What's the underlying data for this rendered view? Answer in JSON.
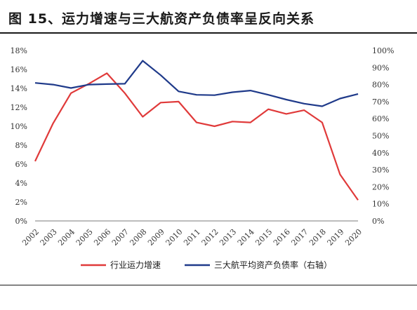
{
  "title": "图 15、运力增速与三大航资产负债率呈反向关系",
  "chart_data": {
    "type": "line",
    "categories": [
      "2002",
      "2003",
      "2004",
      "2005",
      "2006",
      "2007",
      "2008",
      "2009",
      "2010",
      "2011",
      "2012",
      "2013",
      "2014",
      "2015",
      "2016",
      "2017",
      "2018",
      "2019",
      "2020"
    ],
    "y_left": {
      "ylim": [
        0,
        18
      ],
      "ticks": [
        "0%",
        "2%",
        "4%",
        "6%",
        "8%",
        "10%",
        "12%",
        "14%",
        "16%",
        "18%"
      ]
    },
    "y_right": {
      "ylim": [
        0,
        100
      ],
      "ticks": [
        "0%",
        "10%",
        "20%",
        "30%",
        "40%",
        "50%",
        "60%",
        "70%",
        "80%",
        "90%",
        "100%"
      ]
    },
    "grid": false,
    "legend_position": "bottom",
    "series": [
      {
        "name": "行业运力增速",
        "axis": "left",
        "color": "#e03a3a",
        "values": [
          6.3,
          10.3,
          13.5,
          14.5,
          15.6,
          13.5,
          11.0,
          12.5,
          12.6,
          10.4,
          10.0,
          10.5,
          10.4,
          11.8,
          11.3,
          11.7,
          10.4,
          4.9,
          2.2
        ]
      },
      {
        "name": "三大航平均资产负债率（右轴）",
        "axis": "right",
        "color": "#1f3a8a",
        "values": [
          81,
          80,
          78,
          80,
          80.3,
          80.5,
          94,
          85.5,
          76,
          74,
          73.8,
          75.5,
          76.5,
          74,
          71.2,
          68.8,
          67.3,
          71.8,
          74.5
        ]
      }
    ]
  }
}
